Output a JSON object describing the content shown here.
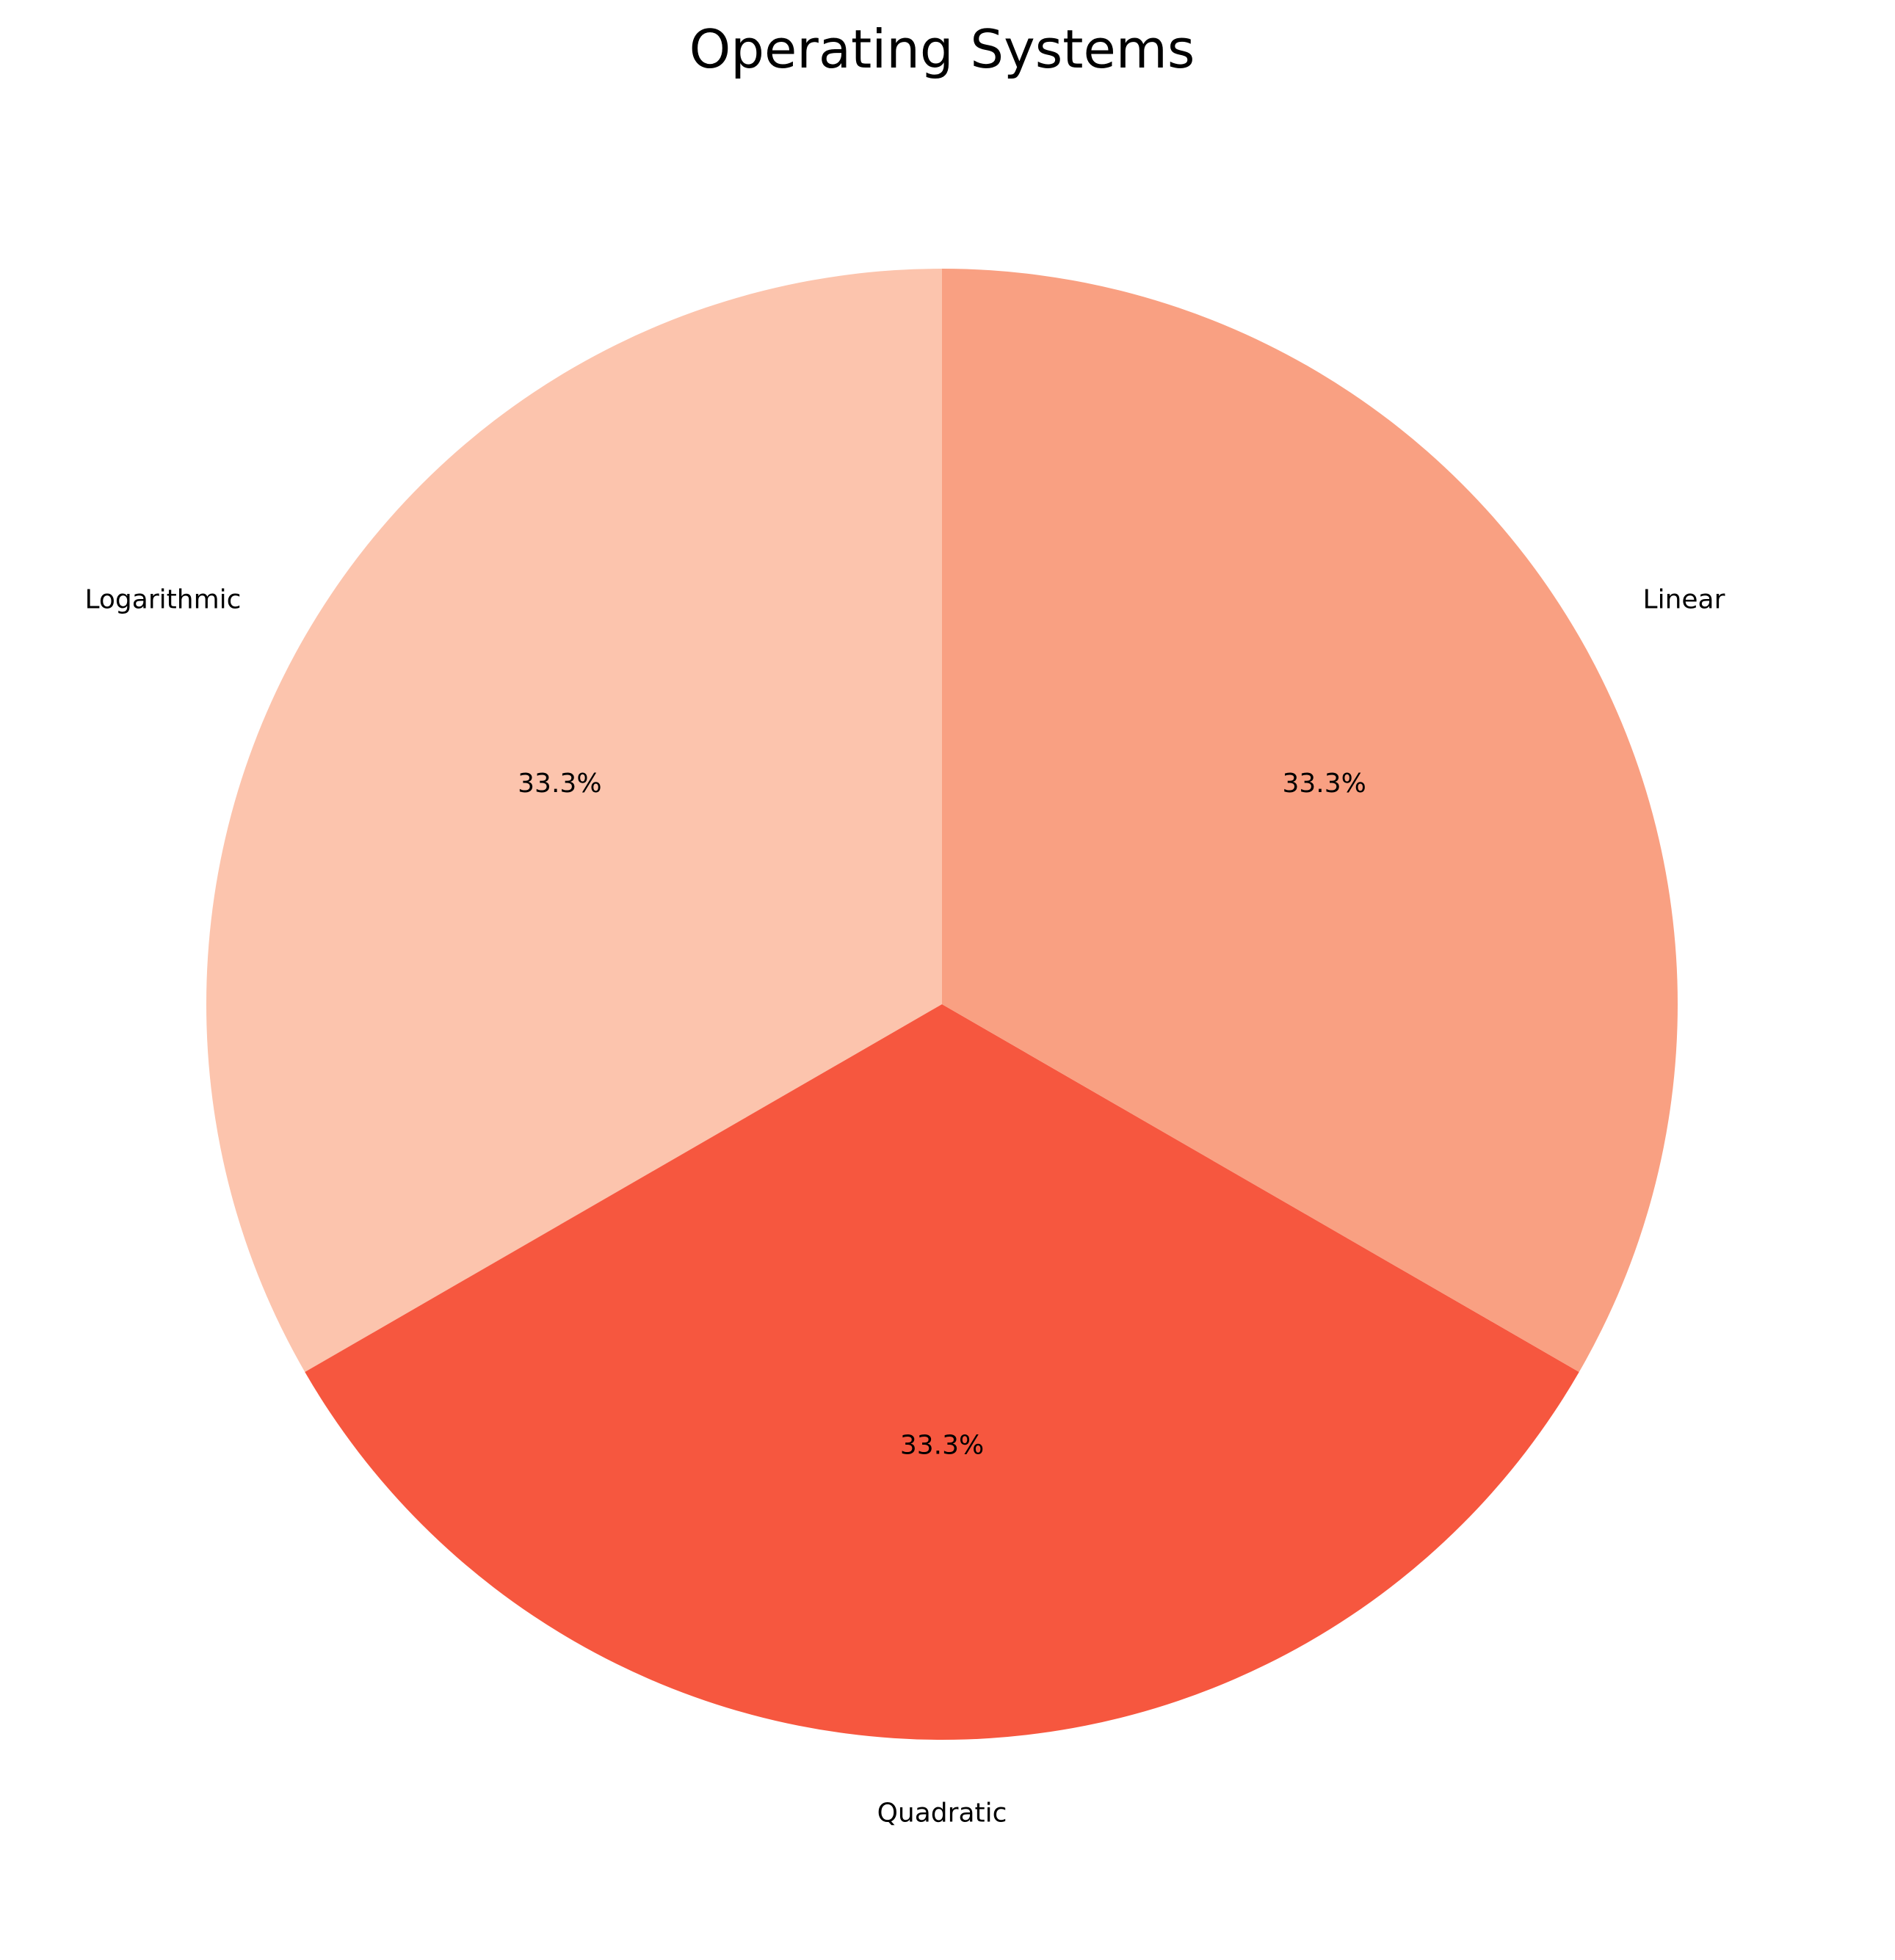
{
  "chart_data": {
    "type": "pie",
    "title": "Operating Systems",
    "categories": [
      "Logarithmic",
      "Quadratic",
      "Linear"
    ],
    "values": [
      33.3,
      33.3,
      33.3
    ],
    "percent_labels": [
      "33.3%",
      "33.3%",
      "33.3%"
    ],
    "colors": [
      "#fcc4ad",
      "#f6573f",
      "#f9a082"
    ],
    "start_angle_deg": 90,
    "direction": "counterclockwise",
    "legend": "none"
  }
}
